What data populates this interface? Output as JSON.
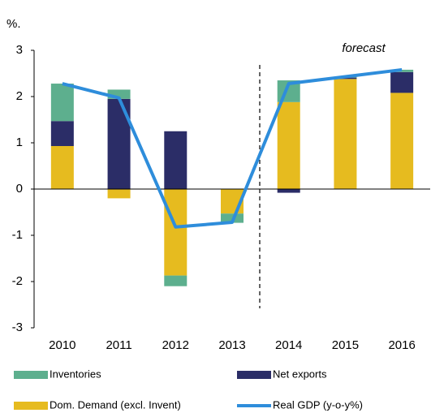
{
  "chart_data": {
    "type": "bar",
    "stacked": true,
    "y_unit_label": "%.",
    "annotation": "forecast",
    "categories": [
      "2010",
      "2011",
      "2012",
      "2013",
      "2014",
      "2015",
      "2016"
    ],
    "series": [
      {
        "name": "Dom. Demand (excl. Invent)",
        "color": "#e6bb1f",
        "values": [
          0.93,
          -0.2,
          -1.87,
          -0.53,
          1.88,
          2.38,
          2.08
        ]
      },
      {
        "name": "Net exports",
        "color": "#2b2d67",
        "values": [
          0.54,
          1.95,
          1.25,
          0,
          -0.08,
          0.03,
          0.45
        ]
      },
      {
        "name": "Inventories",
        "color": "#5daf8e",
        "values": [
          0.81,
          0.2,
          -0.23,
          -0.2,
          0.47,
          0.02,
          0.05
        ]
      },
      {
        "name": "Real GDP (y-o-y%)",
        "type": "line",
        "color": "#2e8ddb",
        "values": [
          2.28,
          1.97,
          -0.82,
          -0.72,
          2.28,
          2.43,
          2.58
        ]
      }
    ],
    "ylim": [
      -3,
      3
    ],
    "yticks": [
      -3,
      -2,
      -1,
      0,
      1,
      2,
      3
    ],
    "grid": false,
    "legend": "bottom"
  }
}
